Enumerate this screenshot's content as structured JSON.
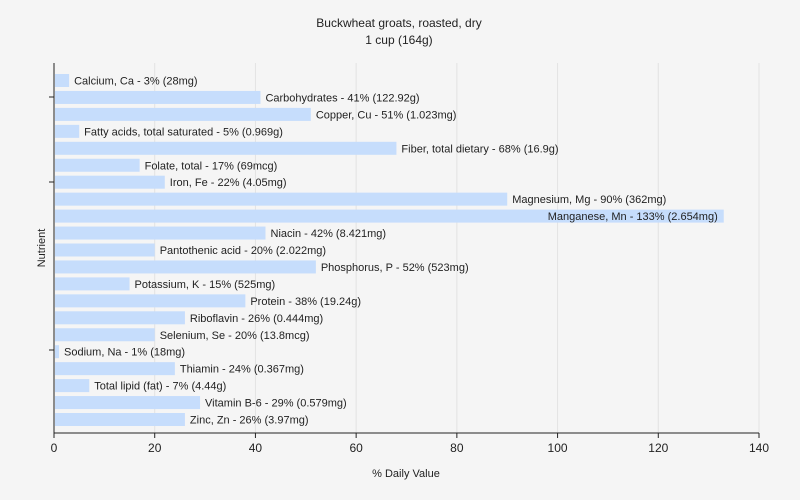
{
  "chart_data": {
    "type": "bar",
    "orientation": "horizontal",
    "title": "Buckwheat groats, roasted, dry",
    "subtitle": "1 cup (164g)",
    "xlabel": "% Daily Value",
    "ylabel": "Nutrient",
    "xlim": [
      0,
      140
    ],
    "xticks": [
      0,
      20,
      40,
      60,
      80,
      100,
      120,
      140
    ],
    "grid": "vertical",
    "bar_color": "#c6ddfc",
    "categories": [
      "Calcium, Ca",
      "Carbohydrates",
      "Copper, Cu",
      "Fatty acids, total saturated",
      "Fiber, total dietary",
      "Folate, total",
      "Iron, Fe",
      "Magnesium, Mg",
      "Manganese, Mn",
      "Niacin",
      "Pantothenic acid",
      "Phosphorus, P",
      "Potassium, K",
      "Protein",
      "Riboflavin",
      "Selenium, Se",
      "Sodium, Na",
      "Thiamin",
      "Total lipid (fat)",
      "Vitamin B-6",
      "Zinc, Zn"
    ],
    "values": [
      3,
      41,
      51,
      5,
      68,
      17,
      22,
      90,
      133,
      42,
      20,
      52,
      15,
      38,
      26,
      20,
      1,
      24,
      7,
      29,
      26
    ],
    "labels": [
      "Calcium, Ca - 3% (28mg)",
      "Carbohydrates - 41% (122.92g)",
      "Copper, Cu - 51% (1.023mg)",
      "Fatty acids, total saturated - 5% (0.969g)",
      "Fiber, total dietary - 68% (16.9g)",
      "Folate, total - 17% (69mcg)",
      "Iron, Fe - 22% (4.05mg)",
      "Magnesium, Mg - 90% (362mg)",
      "Manganese, Mn - 133% (2.654mg)",
      "Niacin - 42% (8.421mg)",
      "Pantothenic acid - 20% (2.022mg)",
      "Phosphorus, P - 52% (523mg)",
      "Potassium, K - 15% (525mg)",
      "Protein - 38% (19.24g)",
      "Riboflavin - 26% (0.444mg)",
      "Selenium, Se - 20% (13.8mcg)",
      "Sodium, Na - 1% (18mg)",
      "Thiamin - 24% (0.367mg)",
      "Total lipid (fat) - 7% (4.44g)",
      "Vitamin B-6 - 29% (0.579mg)",
      "Zinc, Zn - 26% (3.97mg)"
    ]
  }
}
